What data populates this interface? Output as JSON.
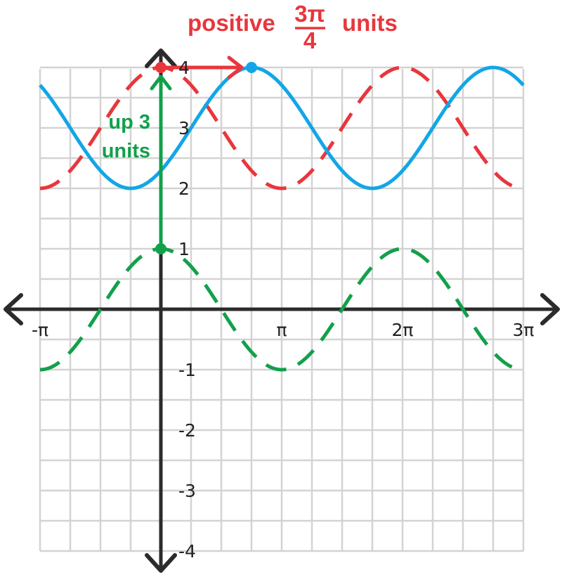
{
  "chart_data": {
    "type": "line",
    "title": "",
    "xlabel": "",
    "ylabel": "",
    "xlim": [
      -3.14159,
      9.42478
    ],
    "ylim": [
      -4,
      4
    ],
    "grid": true,
    "x_tick_labels": [
      {
        "x": -3.14159,
        "label": "-π"
      },
      {
        "x": 3.14159,
        "label": "π"
      },
      {
        "x": 6.28319,
        "label": "2π"
      },
      {
        "x": 9.42478,
        "label": "3π"
      }
    ],
    "y_tick_labels": [
      {
        "y": 4,
        "label": "4"
      },
      {
        "y": 3,
        "label": "3"
      },
      {
        "y": 2,
        "label": "2"
      },
      {
        "y": 1,
        "label": "1"
      },
      {
        "y": -1,
        "label": "-1"
      },
      {
        "y": -2,
        "label": "-2"
      },
      {
        "y": -3,
        "label": "-3"
      },
      {
        "y": -4,
        "label": "-4"
      }
    ],
    "series": [
      {
        "color": "#12a04b",
        "style": "dashed",
        "amplitude": 1,
        "vertical_shift": 0,
        "phase_shift": 0
      },
      {
        "color": "#e8363c",
        "style": "dashed",
        "amplitude": 1,
        "vertical_shift": 3,
        "phase_shift": 0
      },
      {
        "color": "#12a6e6",
        "style": "solid",
        "amplitude": 1,
        "vertical_shift": 3,
        "phase_shift": 2.35619
      }
    ],
    "key_points": {
      "green_max": {
        "x": 0,
        "y": 1
      },
      "red_max": {
        "x": 0,
        "y": 4
      },
      "blue_max": {
        "x": 2.35619,
        "y": 4
      }
    },
    "annotations": {
      "horizontal": {
        "prefix": "positive",
        "numerator": "3π",
        "denominator": "4",
        "suffix": "units",
        "color": "#e8363c"
      },
      "vertical": {
        "line1": "up 3",
        "line2": "units",
        "color": "#12a04b"
      }
    }
  }
}
